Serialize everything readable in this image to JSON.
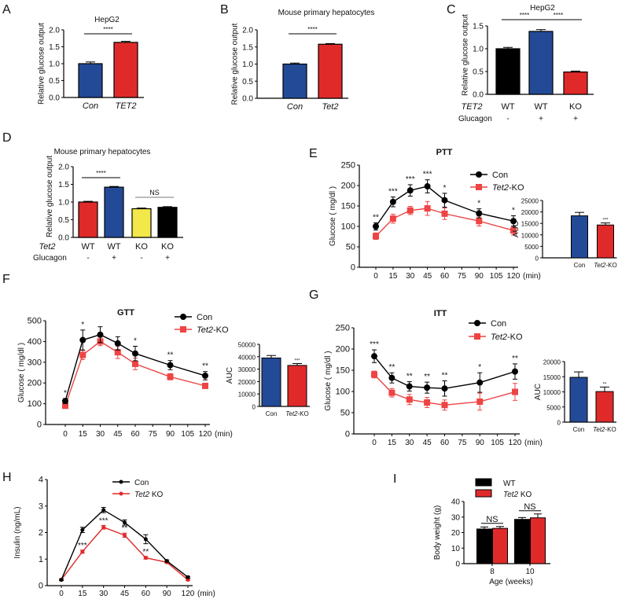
{
  "colors": {
    "blue": "#234a96",
    "red": "#e02a2a",
    "black": "#000000",
    "yellow": "#f2e84a",
    "line_red": "#ee4444"
  },
  "chart_data": [
    {
      "panel": "A",
      "type": "bar",
      "title": "HepG2",
      "ylabel": "Relative glucose output",
      "ylim": [
        0,
        2
      ],
      "yticks": [
        "0.0",
        "0.5",
        "1.0",
        "1.5",
        "2.0"
      ],
      "categories": [
        "Con",
        "TET2"
      ],
      "values": [
        1.0,
        1.63
      ],
      "errors": [
        0.05,
        0.03
      ],
      "colors": [
        "#234a96",
        "#e02a2a"
      ],
      "significance": [
        {
          "between": [
            0,
            1
          ],
          "label": "****"
        }
      ]
    },
    {
      "panel": "B",
      "type": "bar",
      "title": "Mouse primary hepatocytes",
      "ylabel": "Relative glucose output",
      "ylim": [
        0,
        2
      ],
      "yticks": [
        "0.0",
        "0.5",
        "1.0",
        "1.5",
        "2.0"
      ],
      "categories": [
        "Con",
        "Tet2"
      ],
      "values": [
        1.0,
        1.58
      ],
      "errors": [
        0.03,
        0.02
      ],
      "colors": [
        "#234a96",
        "#e02a2a"
      ],
      "significance": [
        {
          "between": [
            0,
            1
          ],
          "label": "****"
        }
      ]
    },
    {
      "panel": "C",
      "type": "bar",
      "title": "HepG2",
      "ylabel": "Relative glucose output",
      "ylim": [
        0,
        1.5
      ],
      "yticks": [
        "0.0",
        "0.5",
        "1.0",
        "1.5"
      ],
      "genotype_label": "TET2",
      "treatment_label": "Glucagon",
      "categories": [
        "WT",
        "WT",
        "KO"
      ],
      "treatment": [
        "-",
        "+",
        "+"
      ],
      "values": [
        1.0,
        1.38,
        0.49
      ],
      "errors": [
        0.03,
        0.04,
        0.02
      ],
      "colors": [
        "#000000",
        "#234a96",
        "#e02a2a"
      ],
      "significance": [
        {
          "between": [
            0,
            1
          ],
          "label": "****"
        },
        {
          "between": [
            1,
            2
          ],
          "label": "****"
        }
      ]
    },
    {
      "panel": "D",
      "type": "bar",
      "title": "Mouse primary hepatocytes",
      "ylabel": "Relative glucose output",
      "ylim": [
        0,
        2
      ],
      "yticks": [
        "0.0",
        "0.5",
        "1.0",
        "1.5",
        "2.0"
      ],
      "genotype_label": "Tet2",
      "treatment_label": "Glucagon",
      "categories": [
        "WT",
        "WT",
        "KO",
        "KO"
      ],
      "treatment": [
        "-",
        "+",
        "-",
        "+"
      ],
      "values": [
        1.0,
        1.42,
        0.81,
        0.85
      ],
      "errors": [
        0.02,
        0.02,
        0.02,
        0.02
      ],
      "colors": [
        "#e02a2a",
        "#234a96",
        "#f2e84a",
        "#000000"
      ],
      "significance": [
        {
          "between": [
            0,
            1
          ],
          "label": "****"
        },
        {
          "between": [
            2,
            3
          ],
          "label": "NS"
        }
      ]
    },
    {
      "panel": "E",
      "type": "line",
      "title": "PTT",
      "ylabel": "Glucose ( mg/dl )",
      "ylim": [
        0,
        250
      ],
      "yticks": [
        "0",
        "50",
        "100",
        "150",
        "200",
        "250"
      ],
      "xlim": [
        0,
        120
      ],
      "xticks": [
        "0",
        "15",
        "30",
        "45",
        "60",
        "75",
        "90",
        "105",
        "120"
      ],
      "xunit": "(min)",
      "x": [
        0,
        15,
        30,
        45,
        60,
        90,
        120
      ],
      "series": [
        {
          "name": "Con",
          "values": [
            100,
            160,
            188,
            198,
            164,
            132,
            113
          ],
          "errors": [
            9,
            12,
            14,
            16,
            17,
            11,
            13
          ],
          "color": "#000000",
          "marker": "circle"
        },
        {
          "name": "Tet2-KO",
          "values": [
            76,
            119,
            139,
            144,
            131,
            113,
            90
          ],
          "errors": [
            8,
            11,
            10,
            17,
            14,
            12,
            11
          ],
          "color": "#ee4444",
          "marker": "square"
        }
      ],
      "stars": [
        "**",
        "***",
        "***",
        "***",
        "*",
        "*",
        "*"
      ],
      "auc": {
        "ylabel": "AUC",
        "ylim": [
          0,
          25000
        ],
        "yticks": [
          "0",
          "5000",
          "10000",
          "15000",
          "20000",
          "25000"
        ],
        "categories": [
          "Con",
          "Tet2-KO"
        ],
        "values": [
          18300,
          14300
        ],
        "errors": [
          1500,
          900
        ],
        "colors": [
          "#234a96",
          "#e02a2a"
        ],
        "stars": "***"
      }
    },
    {
      "panel": "F",
      "type": "line",
      "title": "GTT",
      "ylabel": "Glucose ( mg/dl )",
      "ylim": [
        0,
        500
      ],
      "yticks": [
        "0",
        "100",
        "200",
        "300",
        "400",
        "500"
      ],
      "xlim": [
        0,
        120
      ],
      "xticks": [
        "0",
        "15",
        "30",
        "45",
        "60",
        "75",
        "90",
        "105",
        "120"
      ],
      "xunit": "(min)",
      "x": [
        0,
        15,
        30,
        45,
        60,
        90,
        120
      ],
      "series": [
        {
          "name": "Con",
          "values": [
            113,
            407,
            433,
            391,
            342,
            286,
            235
          ],
          "errors": [
            12,
            48,
            38,
            32,
            35,
            22,
            20
          ],
          "color": "#000000",
          "marker": "circle"
        },
        {
          "name": "Tet2-KO",
          "values": [
            90,
            335,
            400,
            348,
            292,
            230,
            186
          ],
          "errors": [
            8,
            22,
            20,
            30,
            28,
            15,
            12
          ],
          "color": "#ee4444",
          "marker": "square"
        }
      ],
      "stars": [
        "*",
        "*",
        "",
        "",
        "*",
        "**",
        "**"
      ],
      "auc": {
        "ylabel": "AUC",
        "ylim": [
          0,
          50000
        ],
        "yticks": [
          "0",
          "10000",
          "20000",
          "30000",
          "40000",
          "50000"
        ],
        "categories": [
          "Con",
          "Tet2-KO"
        ],
        "values": [
          39000,
          33000
        ],
        "errors": [
          2000,
          1500
        ],
        "colors": [
          "#234a96",
          "#e02a2a"
        ],
        "stars": "***"
      }
    },
    {
      "panel": "G",
      "type": "line",
      "title": "ITT",
      "ylabel": "Glucose ( mg/dl )",
      "ylim": [
        0,
        250
      ],
      "yticks": [
        "0",
        "50",
        "100",
        "150",
        "200",
        "250"
      ],
      "xlim": [
        0,
        120
      ],
      "xticks": [
        "0",
        "15",
        "30",
        "45",
        "60",
        "75",
        "90",
        "105",
        "120"
      ],
      "xunit": "(min)",
      "x": [
        0,
        15,
        30,
        45,
        60,
        90,
        120
      ],
      "series": [
        {
          "name": "Con",
          "values": [
            183,
            132,
            112,
            109,
            107,
            121,
            147
          ],
          "errors": [
            15,
            12,
            11,
            13,
            18,
            23,
            18
          ],
          "color": "#000000",
          "marker": "circle"
        },
        {
          "name": "Tet2-KO",
          "values": [
            140,
            97,
            81,
            74,
            68,
            76,
            99
          ],
          "errors": [
            8,
            10,
            12,
            12,
            12,
            20,
            20
          ],
          "color": "#ee4444",
          "marker": "square"
        }
      ],
      "stars": [
        "***",
        "**",
        "**",
        "**",
        "**",
        "*",
        "**"
      ],
      "auc": {
        "ylabel": "AUC",
        "ylim": [
          0,
          20000
        ],
        "yticks": [
          "0",
          "5000",
          "10000",
          "15000",
          "20000"
        ],
        "categories": [
          "Con",
          "Tet2-KO"
        ],
        "values": [
          14800,
          10100
        ],
        "errors": [
          1800,
          1500
        ],
        "colors": [
          "#234a96",
          "#e02a2a"
        ],
        "stars": "**"
      }
    },
    {
      "panel": "H",
      "type": "line",
      "title": "",
      "ylabel": "Insulin (ng/mL)",
      "ylim": [
        0,
        4
      ],
      "yticks": [
        "0",
        "1",
        "2",
        "3",
        "4"
      ],
      "categorical_x": true,
      "xticks": [
        "0",
        "15",
        "30",
        "45",
        "60",
        "90",
        "120"
      ],
      "xunit": "(min)",
      "series": [
        {
          "name": "Con",
          "values": [
            0.22,
            2.1,
            2.85,
            2.38,
            1.75,
            0.93,
            0.32
          ],
          "errors": [
            0.03,
            0.1,
            0.1,
            0.1,
            0.17,
            0.04,
            0.03
          ],
          "color": "#000000",
          "marker": "small"
        },
        {
          "name": "Tet2 KO",
          "values": [
            0.22,
            1.28,
            2.2,
            1.9,
            1.05,
            0.88,
            0.22
          ],
          "errors": [
            0.03,
            0.06,
            0.07,
            0.08,
            0.05,
            0.03,
            0.03
          ],
          "color": "#e02a2a",
          "marker": "small"
        }
      ],
      "stars": [
        "",
        "***",
        "***",
        "**",
        "**",
        "",
        ""
      ]
    },
    {
      "panel": "I",
      "type": "bar",
      "title": "",
      "ylabel": "Body weight (g)",
      "xlabel": "Age (weeks)",
      "ylim": [
        0,
        40
      ],
      "yticks": [
        "0",
        "10",
        "20",
        "30",
        "40"
      ],
      "categories": [
        "8",
        "10"
      ],
      "series": [
        {
          "name": "WT",
          "values": [
            22.3,
            28.5
          ],
          "errors": [
            1.3,
            1.2
          ],
          "color": "#000000"
        },
        {
          "name": "Tet2 KO",
          "values": [
            22.7,
            29.5
          ],
          "errors": [
            1.2,
            2.5
          ],
          "color": "#e02a2a"
        }
      ],
      "significance": [
        "NS",
        "NS"
      ]
    }
  ]
}
